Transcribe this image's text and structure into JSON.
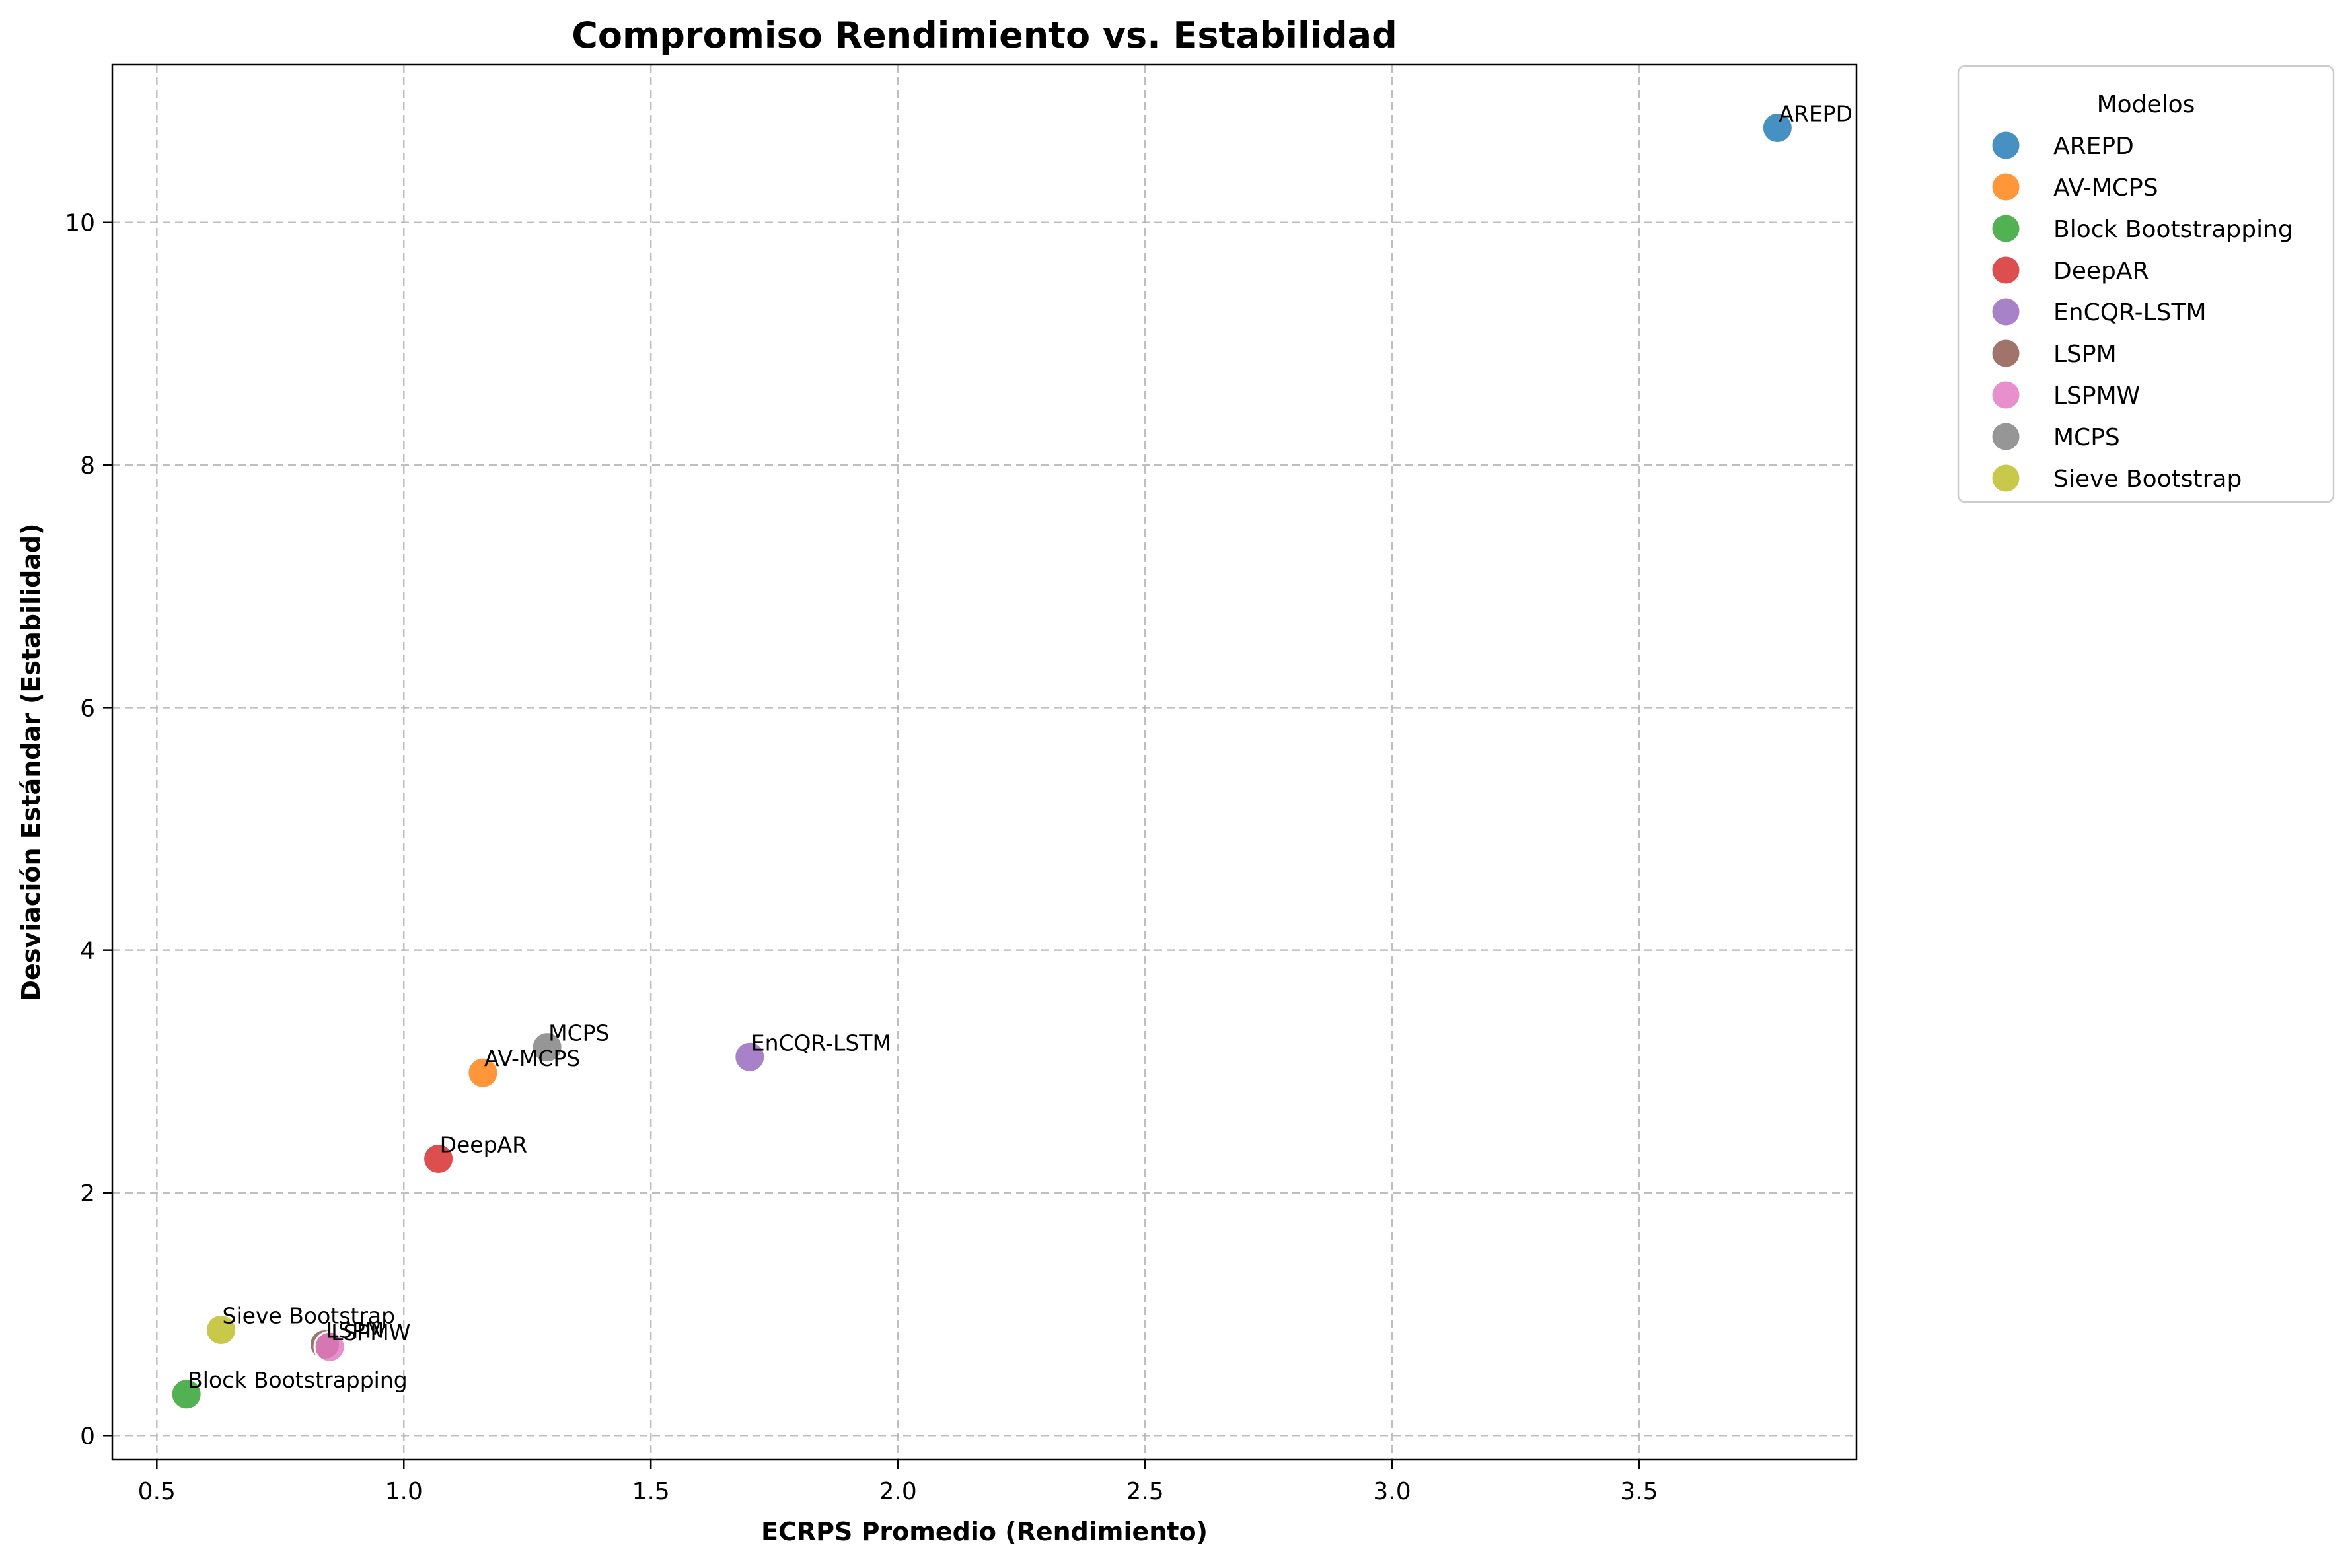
{
  "chart_data": {
    "type": "scatter",
    "title": "Compromiso Rendimiento vs. Estabilidad",
    "xlabel": "ECRPS Promedio (Rendimiento)",
    "ylabel": "Desviación Estándar (Estabilidad)",
    "xlim": [
      0.41,
      3.94
    ],
    "ylim": [
      -0.2,
      11.3
    ],
    "xticks": [
      0.5,
      1.0,
      1.5,
      2.0,
      2.5,
      3.0,
      3.5
    ],
    "xtick_labels": [
      "0.5",
      "1.0",
      "1.5",
      "2.0",
      "2.5",
      "3.0",
      "3.5"
    ],
    "yticks": [
      0,
      2,
      4,
      6,
      8,
      10
    ],
    "ytick_labels": [
      "0",
      "2",
      "4",
      "6",
      "8",
      "10"
    ],
    "grid": true,
    "legend": {
      "title": "Modelos",
      "placement": "outside-right-top"
    },
    "series": [
      {
        "name": "AREPD",
        "x": 3.78,
        "y": 10.78,
        "color": "#1f77b4"
      },
      {
        "name": "AV-MCPS",
        "x": 1.16,
        "y": 2.99,
        "color": "#ff7f0e"
      },
      {
        "name": "Block Bootstrapping",
        "x": 0.56,
        "y": 0.34,
        "color": "#2ca02c"
      },
      {
        "name": "DeepAR",
        "x": 1.07,
        "y": 2.28,
        "color": "#d62728"
      },
      {
        "name": "EnCQR-LSTM",
        "x": 1.7,
        "y": 3.12,
        "color": "#9467bd"
      },
      {
        "name": "LSPM",
        "x": 0.84,
        "y": 0.75,
        "color": "#8c564b"
      },
      {
        "name": "LSPMW",
        "x": 0.85,
        "y": 0.73,
        "color": "#e377c2"
      },
      {
        "name": "MCPS",
        "x": 1.29,
        "y": 3.2,
        "color": "#7f7f7f"
      },
      {
        "name": "Sieve Bootstrap",
        "x": 0.63,
        "y": 0.87,
        "color": "#bcbd22"
      }
    ]
  }
}
